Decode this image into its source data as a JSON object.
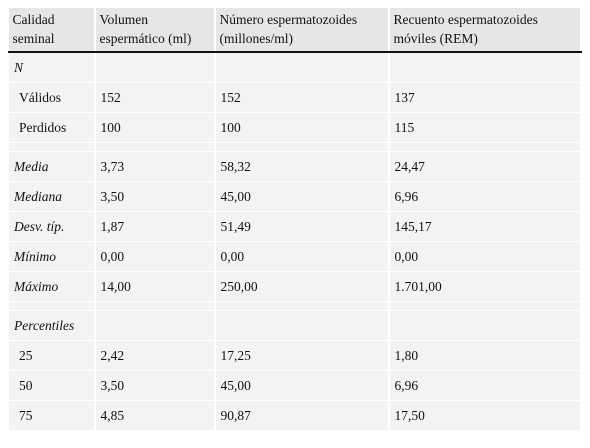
{
  "table": {
    "header": [
      "Calidad seminal",
      "Volumen espermático (ml)",
      "Número espermatozoides (millones/ml)",
      "Recuento espermatozoides móviles (REM)"
    ],
    "sections": [
      {
        "heading": "N",
        "rows": [
          [
            "Válidos",
            "152",
            "152",
            "137"
          ],
          [
            "Perdidos",
            "100",
            "100",
            "115"
          ]
        ]
      },
      {
        "rows": [
          [
            "Media",
            "3,73",
            "58,32",
            "24,47"
          ],
          [
            "Mediana",
            "3,50",
            "45,00",
            "6,96"
          ],
          [
            "Desv. típ.",
            "1,87",
            "51,49",
            "145,17"
          ],
          [
            "Mínimo",
            "0,00",
            "0,00",
            "0,00"
          ],
          [
            "Máximo",
            "14,00",
            "250,00",
            "1.701,00"
          ]
        ]
      },
      {
        "heading": "Percentiles",
        "rows": [
          [
            "25",
            "2,42",
            "17,25",
            "1,80"
          ],
          [
            "50",
            "3,50",
            "45,00",
            "6,96"
          ],
          [
            "75",
            "4,85",
            "90,87",
            "17,50"
          ]
        ]
      }
    ]
  }
}
